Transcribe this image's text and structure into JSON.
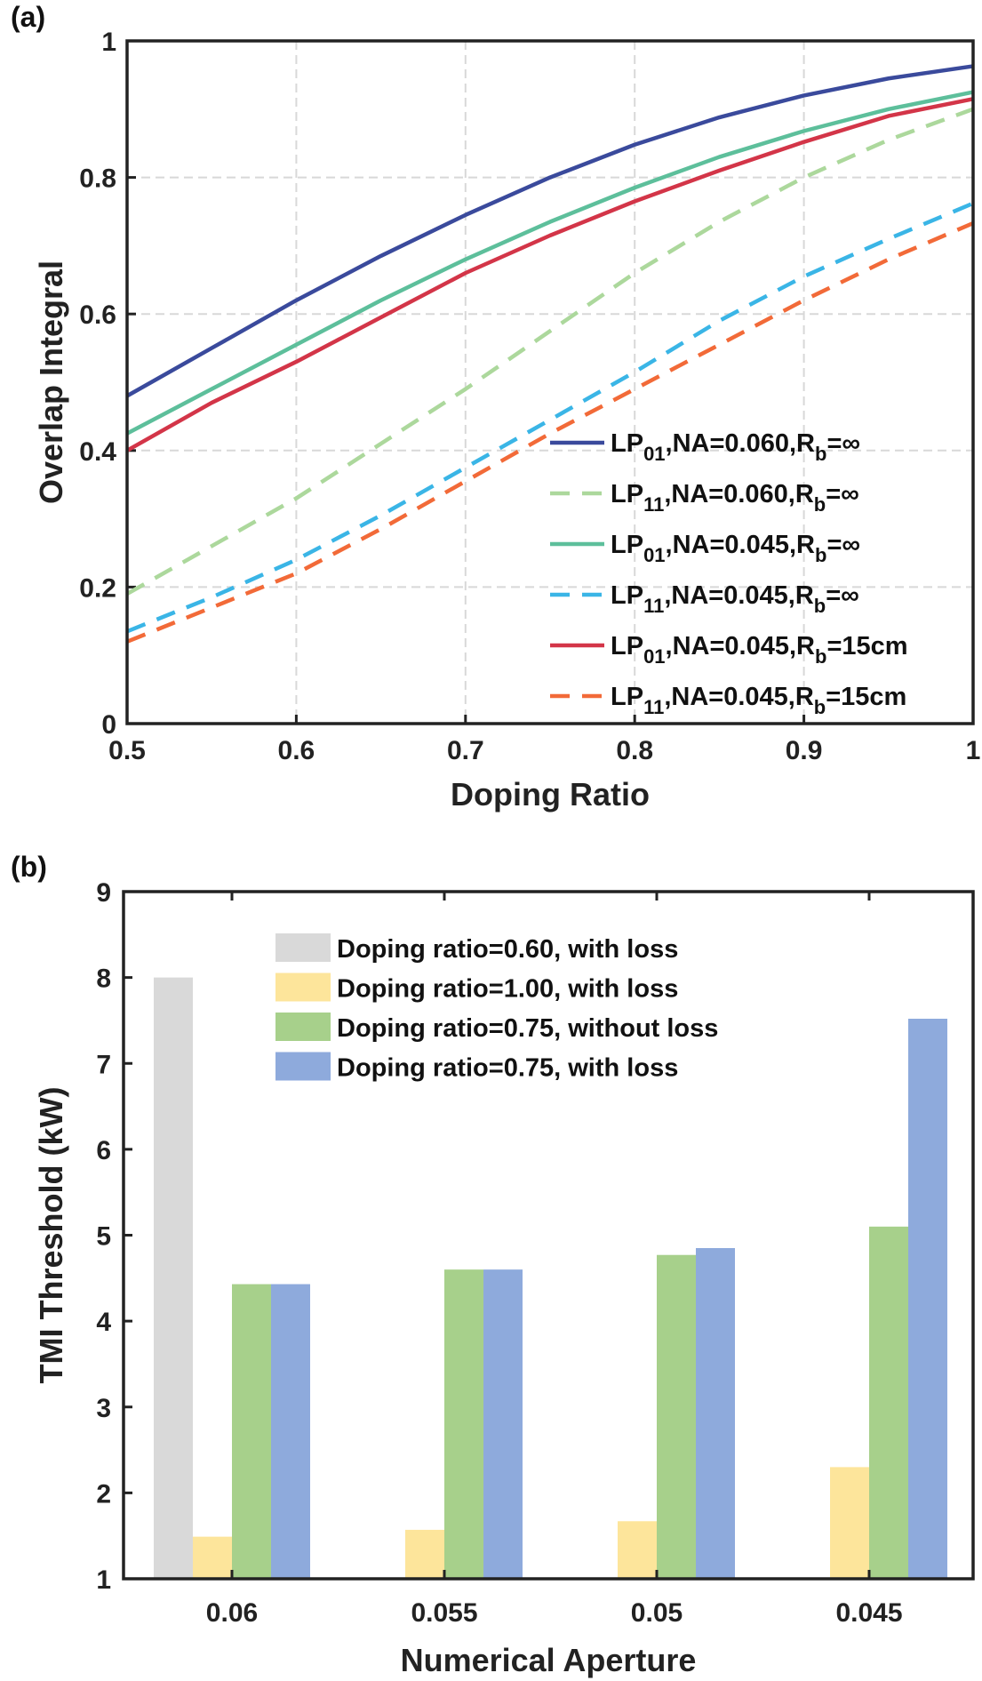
{
  "chart_data": [
    {
      "panel_label": "(a)",
      "type": "line",
      "xlabel": "Doping Ratio",
      "ylabel": "Overlap Integral",
      "xlim": [
        0.5,
        1
      ],
      "ylim": [
        0,
        1
      ],
      "xticks": [
        "0.5",
        "0.6",
        "0.7",
        "0.8",
        "0.9",
        "1"
      ],
      "yticks": [
        "0",
        "0.2",
        "0.4",
        "0.6",
        "0.8",
        "1"
      ],
      "grid": true,
      "legend_position": "bottom-right",
      "x": [
        0.5,
        0.55,
        0.6,
        0.65,
        0.7,
        0.75,
        0.8,
        0.85,
        0.9,
        0.95,
        1.0
      ],
      "series": [
        {
          "legend": {
            "mode": "LP",
            "mode_sub": "01",
            "mid": ",NA=0.060,R",
            "r_sub": "b",
            "tail": "=∞"
          },
          "color": "#3a4a9c",
          "dash": false,
          "values": [
            0.48,
            0.55,
            0.62,
            0.685,
            0.745,
            0.8,
            0.848,
            0.888,
            0.92,
            0.945,
            0.963
          ]
        },
        {
          "legend": {
            "mode": "LP",
            "mode_sub": "11",
            "mid": ",NA=0.060,R",
            "r_sub": "b",
            "tail": "=∞"
          },
          "color": "#acd89c",
          "dash": true,
          "values": [
            0.19,
            0.26,
            0.33,
            0.41,
            0.49,
            0.575,
            0.66,
            0.735,
            0.8,
            0.855,
            0.9
          ]
        },
        {
          "legend": {
            "mode": "LP",
            "mode_sub": "01",
            "mid": ",NA=0.045,R",
            "r_sub": "b",
            "tail": "=∞"
          },
          "color": "#5dbf9b",
          "dash": false,
          "values": [
            0.425,
            0.49,
            0.555,
            0.62,
            0.68,
            0.735,
            0.785,
            0.83,
            0.868,
            0.9,
            0.925
          ]
        },
        {
          "legend": {
            "mode": "LP",
            "mode_sub": "11",
            "mid": ",NA=0.045,R",
            "r_sub": "b",
            "tail": "=∞"
          },
          "color": "#3ab5e6",
          "dash": true,
          "values": [
            0.135,
            0.185,
            0.24,
            0.305,
            0.375,
            0.445,
            0.515,
            0.59,
            0.655,
            0.71,
            0.762
          ]
        },
        {
          "legend": {
            "mode": "LP",
            "mode_sub": "01",
            "mid": ",NA=0.045,R",
            "r_sub": "b",
            "tail": "=15cm"
          },
          "color": "#d33548",
          "dash": false,
          "values": [
            0.4,
            0.47,
            0.53,
            0.595,
            0.66,
            0.715,
            0.765,
            0.81,
            0.852,
            0.89,
            0.915
          ]
        },
        {
          "legend": {
            "mode": "LP",
            "mode_sub": "11",
            "mid": ",NA=0.045,R",
            "r_sub": "b",
            "tail": "=15cm"
          },
          "color": "#f26a38",
          "dash": true,
          "values": [
            0.12,
            0.17,
            0.22,
            0.285,
            0.355,
            0.425,
            0.49,
            0.555,
            0.62,
            0.68,
            0.733
          ]
        }
      ]
    },
    {
      "panel_label": "(b)",
      "type": "bar",
      "xlabel": "Numerical Aperture",
      "ylabel": "TMI Threshold (kW)",
      "ylim": [
        1,
        9
      ],
      "yticks": [
        "1",
        "2",
        "3",
        "4",
        "5",
        "6",
        "7",
        "8",
        "9"
      ],
      "categories": [
        "0.06",
        "0.055",
        "0.05",
        "0.045"
      ],
      "legend_position": "top-center",
      "series": [
        {
          "name": "Doping ratio=0.60, with loss",
          "color": "#d9d9d9",
          "values": [
            8.0,
            null,
            null,
            null
          ]
        },
        {
          "name": "Doping ratio=1.00, with loss",
          "color": "#fde59b",
          "values": [
            1.49,
            1.57,
            1.67,
            2.3
          ]
        },
        {
          "name": "Doping ratio=0.75, without loss",
          "color": "#a7d08b",
          "values": [
            4.43,
            4.6,
            4.77,
            5.1
          ]
        },
        {
          "name": "Doping ratio=0.75, with loss",
          "color": "#8eaadc",
          "values": [
            4.43,
            4.6,
            4.85,
            7.52
          ]
        }
      ]
    }
  ]
}
